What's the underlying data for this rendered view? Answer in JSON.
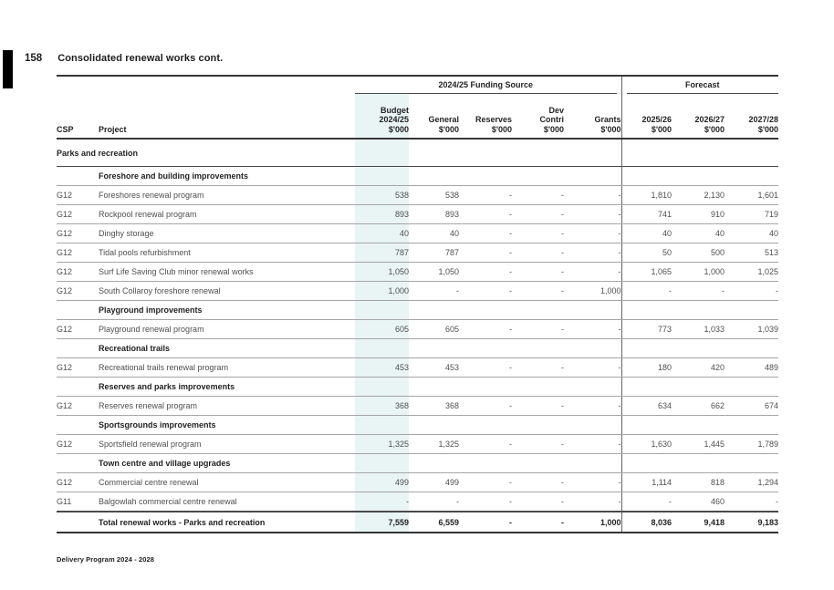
{
  "page": {
    "number": "158",
    "title": "Consolidated renewal works cont.",
    "footer": "Delivery Program 2024 - 2028"
  },
  "colors": {
    "budget_highlight": "#e9f4f4",
    "rule_dark": "#383838",
    "rule_gray": "#a6a6a6",
    "text_dark": "#232323"
  },
  "table": {
    "group_headers": {
      "funding": "2024/25 Funding Source",
      "forecast": "Forecast"
    },
    "columns": {
      "csp": [
        "CSP"
      ],
      "project": [
        "Project"
      ],
      "budget": [
        "Budget",
        "2024/25",
        "$'000"
      ],
      "general": [
        "General",
        "$'000"
      ],
      "reserves": [
        "Reserves",
        "$'000"
      ],
      "dev_contri": [
        "Dev",
        "Contri",
        "$'000"
      ],
      "grants": [
        "Grants",
        "$'000"
      ],
      "fy1": [
        "2025/26",
        "$'000"
      ],
      "fy2": [
        "2026/27",
        "$'000"
      ],
      "fy3": [
        "2027/28",
        "$'000"
      ]
    },
    "rows": [
      {
        "type": "section",
        "label": "Parks and recreation"
      },
      {
        "type": "subsection",
        "label": "Foreshore and building improvements"
      },
      {
        "type": "data",
        "csp": "G12",
        "project": "Foreshores renewal program",
        "values": [
          "538",
          "538",
          "-",
          "-",
          "-",
          "1,810",
          "2,130",
          "1,601"
        ]
      },
      {
        "type": "data",
        "csp": "G12",
        "project": "Rockpool renewal program",
        "values": [
          "893",
          "893",
          "-",
          "-",
          "-",
          "741",
          "910",
          "719"
        ]
      },
      {
        "type": "data",
        "csp": "G12",
        "project": "Dinghy storage",
        "values": [
          "40",
          "40",
          "-",
          "-",
          "-",
          "40",
          "40",
          "40"
        ]
      },
      {
        "type": "data",
        "csp": "G12",
        "project": "Tidal pools refurbishment",
        "values": [
          "787",
          "787",
          "-",
          "-",
          "-",
          "50",
          "500",
          "513"
        ]
      },
      {
        "type": "data",
        "csp": "G12",
        "project": "Surf Life Saving Club minor renewal works",
        "values": [
          "1,050",
          "1,050",
          "-",
          "-",
          "-",
          "1,065",
          "1,000",
          "1,025"
        ]
      },
      {
        "type": "data",
        "csp": "G12",
        "project": "South Collaroy foreshore renewal",
        "values": [
          "1,000",
          "-",
          "-",
          "-",
          "1,000",
          "-",
          "-",
          "-"
        ]
      },
      {
        "type": "subsection",
        "label": "Playground improvements"
      },
      {
        "type": "data",
        "csp": "G12",
        "project": "Playground renewal program",
        "values": [
          "605",
          "605",
          "-",
          "-",
          "-",
          "773",
          "1,033",
          "1,039"
        ]
      },
      {
        "type": "subsection",
        "label": "Recreational trails"
      },
      {
        "type": "data",
        "csp": "G12",
        "project": "Recreational trails renewal program",
        "values": [
          "453",
          "453",
          "-",
          "-",
          "-",
          "180",
          "420",
          "489"
        ]
      },
      {
        "type": "subsection",
        "label": "Reserves and parks improvements"
      },
      {
        "type": "data",
        "csp": "G12",
        "project": "Reserves renewal program",
        "values": [
          "368",
          "368",
          "-",
          "-",
          "-",
          "634",
          "662",
          "674"
        ]
      },
      {
        "type": "subsection",
        "label": "Sportsgrounds improvements"
      },
      {
        "type": "data",
        "csp": "G12",
        "project": "Sportsfield renewal program",
        "values": [
          "1,325",
          "1,325",
          "-",
          "-",
          "-",
          "1,630",
          "1,445",
          "1,789"
        ]
      },
      {
        "type": "subsection",
        "label": "Town centre and village upgrades"
      },
      {
        "type": "data",
        "csp": "G12",
        "project": "Commercial centre renewal",
        "values": [
          "499",
          "499",
          "-",
          "-",
          "-",
          "1,114",
          "818",
          "1,294"
        ]
      },
      {
        "type": "data",
        "csp": "G11",
        "project": "Balgowlah commercial centre renewal",
        "values": [
          "-",
          "-",
          "-",
          "-",
          "-",
          "-",
          "460",
          "-"
        ]
      },
      {
        "type": "total",
        "label": "Total renewal works - Parks and recreation",
        "values": [
          "7,559",
          "6,559",
          "-",
          "-",
          "1,000",
          "8,036",
          "9,418",
          "9,183"
        ]
      }
    ]
  }
}
